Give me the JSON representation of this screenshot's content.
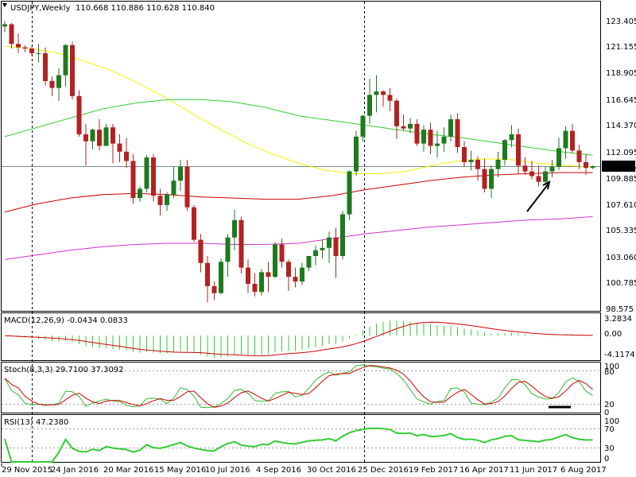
{
  "colors": {
    "up": "#1e7a1e",
    "down": "#b22222",
    "ma50": "#f2f200",
    "ma100": "#33cc33",
    "ma200": "#cc0000",
    "ma400": "#cc33cc",
    "macd_hist": "#33cc33",
    "macd_signal": "#cc0000",
    "stoch_k": "#33bb33",
    "stoch_d": "#cc0000",
    "rsi": "#33cc33",
    "price_label_bg": "#000000",
    "price_label_fg": "#ffffff"
  },
  "header": {
    "symbol": "USDJPY,Weekly",
    "ohlc": "110.668 110.886 110.628 110.840"
  },
  "price_panel": {
    "current_price": "110.840",
    "axis_labels": [
      "123.405",
      "121.155",
      "118.905",
      "116.645",
      "114.370",
      "112.095",
      "109.885",
      "107.610",
      "105.335",
      "103.060",
      "100.785",
      "98.575"
    ]
  },
  "macd_panel": {
    "title": "MACD(12,26,9) -0.0434 0.0833",
    "axis_labels": [
      "3.2834",
      "0.00",
      "-4.1174"
    ]
  },
  "stoch_panel": {
    "title": "Stoch(8,3,3) 29.7100 37.3092",
    "axis_labels": [
      "100",
      "80",
      "20",
      "0"
    ]
  },
  "rsi_panel": {
    "title": "RSI(13) 47.2380",
    "axis_labels": [
      "100",
      "70",
      "30",
      "0"
    ]
  },
  "time_axis": {
    "labels": [
      "29 Nov 2015",
      "24 Jan 2016",
      "20 Mar 2016",
      "15 May 2016",
      "10 Jul 2016",
      "4 Sep 2016",
      "30 Oct 2016",
      "25 Dec 2016",
      "19 Feb 2017",
      "16 Apr 2017",
      "11 Jun 2017",
      "6 Aug 2017"
    ]
  },
  "chart_data": {
    "type": "candlestick",
    "symbol": "USDJPY",
    "timeframe": "Weekly",
    "x_range": [
      "29 Nov 2015",
      "6 Aug 2017"
    ],
    "ylim": [
      98.575,
      123.405
    ],
    "last_close": 110.84,
    "candles_ohlc": [
      [
        122.9,
        123.4,
        122.4,
        123.1
      ],
      [
        123.1,
        123.2,
        121.0,
        121.4
      ],
      [
        121.4,
        122.3,
        120.6,
        121.1
      ],
      [
        121.1,
        121.3,
        120.7,
        121.0
      ],
      [
        121.0,
        121.2,
        120.4,
        120.6
      ],
      [
        120.6,
        121.4,
        119.8,
        120.6
      ],
      [
        120.6,
        121.1,
        117.8,
        118.2
      ],
      [
        118.2,
        118.6,
        116.9,
        117.6
      ],
      [
        117.6,
        119.3,
        116.5,
        118.7
      ],
      [
        118.7,
        121.4,
        117.7,
        121.3
      ],
      [
        121.3,
        121.6,
        116.6,
        116.9
      ],
      [
        116.9,
        117.4,
        113.4,
        113.6
      ],
      [
        113.6,
        114.5,
        110.9,
        113.0
      ],
      [
        113.0,
        114.1,
        112.3,
        114.0
      ],
      [
        114.0,
        114.9,
        112.2,
        112.6
      ],
      [
        112.6,
        114.5,
        112.6,
        114.2
      ],
      [
        114.2,
        114.5,
        111.1,
        112.8
      ],
      [
        112.8,
        113.6,
        111.2,
        112.1
      ],
      [
        112.1,
        113.3,
        110.7,
        111.3
      ],
      [
        111.3,
        111.9,
        107.6,
        108.1
      ],
      [
        108.1,
        109.1,
        107.8,
        108.9
      ],
      [
        108.9,
        111.8,
        108.6,
        111.6
      ],
      [
        111.6,
        111.9,
        107.8,
        108.3
      ],
      [
        108.3,
        108.9,
        106.6,
        107.5
      ],
      [
        107.5,
        108.6,
        107.0,
        108.4
      ],
      [
        108.4,
        110.8,
        108.1,
        109.6
      ],
      [
        109.6,
        111.4,
        108.7,
        110.8
      ],
      [
        110.8,
        111.4,
        107.0,
        107.3
      ],
      [
        107.3,
        107.5,
        104.3,
        104.5
      ],
      [
        104.5,
        105.0,
        101.7,
        102.5
      ],
      [
        102.5,
        103.1,
        99.1,
        100.5
      ],
      [
        100.5,
        100.9,
        99.3,
        99.9
      ],
      [
        99.9,
        102.9,
        99.8,
        102.6
      ],
      [
        102.6,
        105.0,
        101.3,
        104.7
      ],
      [
        104.7,
        107.1,
        103.6,
        106.2
      ],
      [
        106.2,
        106.5,
        101.6,
        102.1
      ],
      [
        102.1,
        102.8,
        99.9,
        100.7
      ],
      [
        100.7,
        101.6,
        99.6,
        100.0
      ],
      [
        100.0,
        102.0,
        99.7,
        101.7
      ],
      [
        101.7,
        102.6,
        100.0,
        101.3
      ],
      [
        101.3,
        104.3,
        101.2,
        104.1
      ],
      [
        104.1,
        104.6,
        102.1,
        102.6
      ],
      [
        102.6,
        102.8,
        100.1,
        101.3
      ],
      [
        101.3,
        102.1,
        100.4,
        100.9
      ],
      [
        100.9,
        102.5,
        100.6,
        102.1
      ],
      [
        102.1,
        103.1,
        101.8,
        103.1
      ],
      [
        103.1,
        104.0,
        102.3,
        103.6
      ],
      [
        103.6,
        104.5,
        102.9,
        103.8
      ],
      [
        103.8,
        105.2,
        102.5,
        104.7
      ],
      [
        104.7,
        105.5,
        101.2,
        103.1
      ],
      [
        103.1,
        107.0,
        102.8,
        106.7
      ],
      [
        106.7,
        110.5,
        106.2,
        110.4
      ],
      [
        110.4,
        113.9,
        110.0,
        113.4
      ],
      [
        113.4,
        115.3,
        113.0,
        115.2
      ],
      [
        115.2,
        118.4,
        114.5,
        117.0
      ],
      [
        117.0,
        118.7,
        115.5,
        117.3
      ],
      [
        117.3,
        117.4,
        116.0,
        117.0
      ],
      [
        117.0,
        117.6,
        115.6,
        116.5
      ],
      [
        116.5,
        116.7,
        113.2,
        114.3
      ],
      [
        114.3,
        115.3,
        113.9,
        114.1
      ],
      [
        114.1,
        115.0,
        113.7,
        114.5
      ],
      [
        114.5,
        114.9,
        112.6,
        112.8
      ],
      [
        112.8,
        114.4,
        112.1,
        114.0
      ],
      [
        114.0,
        114.6,
        111.9,
        112.6
      ],
      [
        112.6,
        113.9,
        111.6,
        112.8
      ],
      [
        112.8,
        114.2,
        112.1,
        113.4
      ],
      [
        113.4,
        115.3,
        113.0,
        114.9
      ],
      [
        114.9,
        115.4,
        112.0,
        112.5
      ],
      [
        112.5,
        113.0,
        110.8,
        111.2
      ],
      [
        111.2,
        112.2,
        110.5,
        111.4
      ],
      [
        111.4,
        111.7,
        109.6,
        110.6
      ],
      [
        110.6,
        111.5,
        108.6,
        108.9
      ],
      [
        108.9,
        110.9,
        108.1,
        110.6
      ],
      [
        110.6,
        112.1,
        109.9,
        111.4
      ],
      [
        111.4,
        113.2,
        110.9,
        113.1
      ],
      [
        113.1,
        114.4,
        112.5,
        113.6
      ],
      [
        113.6,
        114.1,
        110.2,
        110.9
      ],
      [
        110.9,
        111.6,
        110.1,
        110.4
      ],
      [
        110.4,
        111.3,
        109.7,
        110.0
      ],
      [
        110.0,
        110.9,
        109.1,
        109.5
      ],
      [
        109.5,
        110.8,
        109.2,
        110.4
      ],
      [
        110.4,
        111.4,
        109.9,
        110.8
      ],
      [
        110.8,
        113.3,
        110.5,
        112.4
      ],
      [
        112.4,
        114.3,
        111.5,
        113.9
      ],
      [
        113.9,
        114.5,
        112.0,
        112.2
      ],
      [
        112.2,
        112.7,
        110.6,
        111.2
      ],
      [
        111.2,
        111.9,
        110.1,
        110.7
      ],
      [
        110.7,
        110.9,
        110.6,
        110.84
      ]
    ],
    "moving_averages": [
      {
        "name": "MA yellow",
        "values": [
          121.2,
          121.0,
          120.6,
          119.9,
          119.1,
          118.0,
          116.8,
          115.4,
          114.1,
          112.9,
          111.9,
          111.1,
          110.5,
          110.2,
          110.2,
          110.4,
          110.9,
          111.3,
          111.5,
          111.4,
          111.1,
          110.9,
          110.8
        ]
      },
      {
        "name": "MA green",
        "values": [
          113.4,
          114.2,
          115.0,
          115.8,
          116.3,
          116.6,
          116.6,
          116.4,
          115.9,
          115.2,
          114.8,
          114.4,
          114.0,
          113.6,
          113.3,
          112.9,
          112.5,
          112.1,
          111.8
        ]
      },
      {
        "name": "MA red",
        "values": [
          106.9,
          107.6,
          108.1,
          108.4,
          108.5,
          108.4,
          108.2,
          108.1,
          108.0,
          108.0,
          108.3,
          108.8,
          109.2,
          109.6,
          109.9,
          110.1,
          110.2,
          110.3,
          110.3
        ]
      },
      {
        "name": "MA magenta",
        "values": [
          102.8,
          103.2,
          103.6,
          103.9,
          104.1,
          104.2,
          104.2,
          104.1,
          104.1,
          104.2,
          104.6,
          105.0,
          105.3,
          105.6,
          105.8,
          106.0,
          106.2,
          106.3,
          106.5
        ]
      }
    ],
    "macd": {
      "value": -0.0434,
      "signal": 0.0833,
      "range": [
        -4.1174,
        3.2834
      ]
    },
    "stochastic": {
      "k": 29.71,
      "d": 37.3092,
      "levels": [
        80,
        20
      ]
    },
    "rsi": {
      "value": 47.238,
      "levels": [
        70,
        30
      ]
    }
  }
}
